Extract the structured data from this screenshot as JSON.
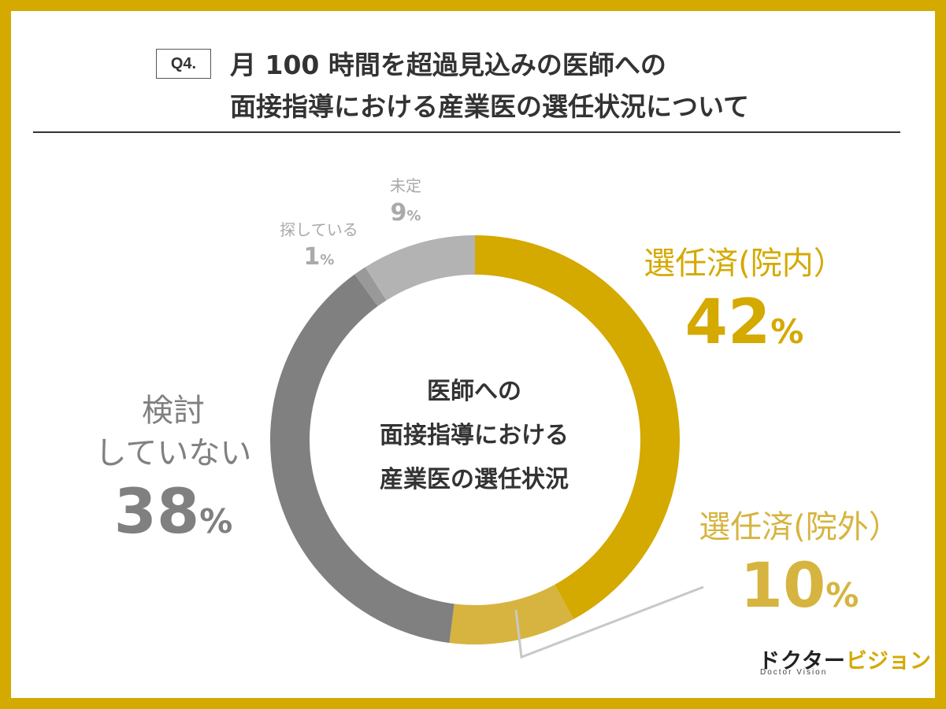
{
  "question_tag": "Q4.",
  "title_line1": "月 100 時間を超過見込みの医師への",
  "title_line2": "面接指導における産業医の選任状況について",
  "center_line1": "医師への",
  "center_line2": "面接指導における",
  "center_line3": "産業医の選任状況",
  "logo": {
    "main": "ドクター",
    "accent": "ビジョン",
    "sub": "Doctor Vision"
  },
  "percent_sign": "%",
  "chart_data": {
    "type": "pie",
    "title": "医師への面接指導における産業医の選任状況",
    "slices": [
      {
        "label": "選任済(院内）",
        "value": 42,
        "display": "42",
        "color": "#d4a900"
      },
      {
        "label": "選任済(院外）",
        "value": 10,
        "display": "10",
        "color": "#d6b43f"
      },
      {
        "label_line1": "検討",
        "label_line2": "していない",
        "value": 38,
        "display": "38",
        "color": "#808080"
      },
      {
        "label": "探している",
        "value": 1,
        "display": "1",
        "color": "#999999"
      },
      {
        "label": "未定",
        "value": 9,
        "display": "9",
        "color": "#b3b3b3"
      }
    ]
  }
}
